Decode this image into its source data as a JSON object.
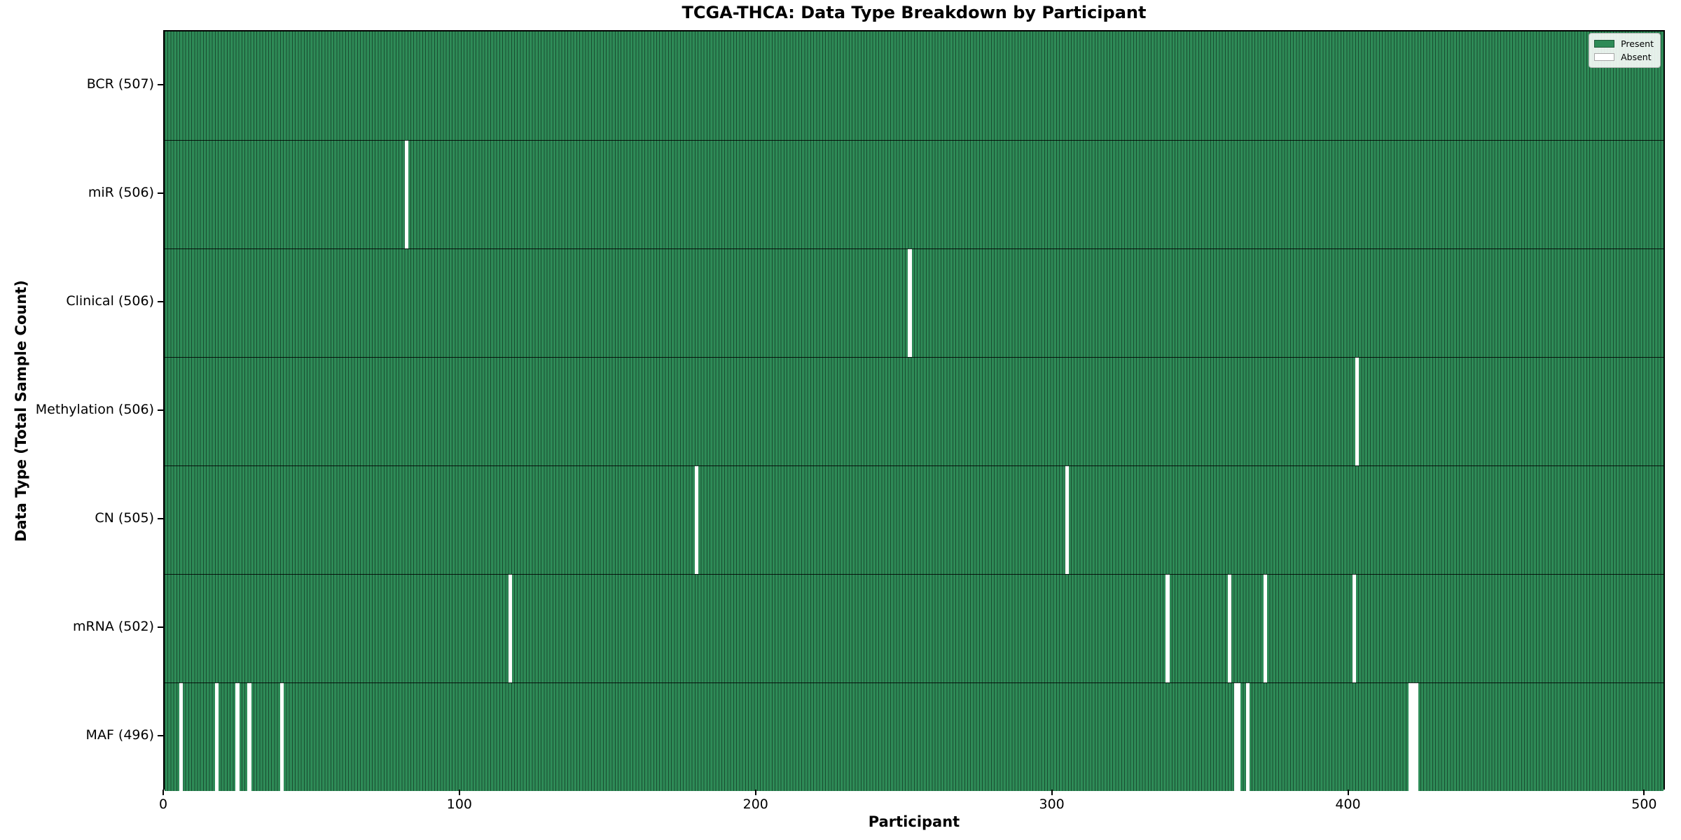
{
  "title": "TCGA-THCA: Data Type Breakdown by Participant",
  "chart_data": {
    "type": "heatmap",
    "title": "TCGA-THCA: Data Type Breakdown by Participant",
    "xlabel": "Participant",
    "ylabel": "Data Type (Total Sample Count)",
    "x_ticks": [
      0,
      100,
      200,
      300,
      400,
      500
    ],
    "x_range": [
      0,
      507
    ],
    "total_participants": 507,
    "grid": "horizontal row separators only",
    "legend_position": "upper right",
    "legend": {
      "entries": [
        {
          "label": "Present",
          "color": "#2e8b57"
        },
        {
          "label": "Absent",
          "color": "#ffffff"
        }
      ]
    },
    "colors": {
      "present": "#2e8b57",
      "absent": "#ffffff",
      "bar_edge": "rgba(0,0,0,0.45)",
      "row_separator": "rgba(0,0,0,0.85)",
      "plot_border": "#000000"
    },
    "rows": [
      {
        "name": "BCR",
        "label": "BCR (507)",
        "present_count": 507,
        "absent_participants": []
      },
      {
        "name": "miR",
        "label": "miR (506)",
        "present_count": 506,
        "absent_participants": [
          81
        ]
      },
      {
        "name": "Clinical",
        "label": "Clinical (506)",
        "present_count": 506,
        "absent_participants": [
          251
        ]
      },
      {
        "name": "Methylation",
        "label": "Methylation (506)",
        "present_count": 506,
        "absent_participants": [
          402
        ]
      },
      {
        "name": "CN",
        "label": "CN (505)",
        "present_count": 505,
        "absent_participants": [
          179,
          304
        ]
      },
      {
        "name": "mRNA",
        "label": "mRNA (502)",
        "present_count": 502,
        "absent_participants": [
          116,
          338,
          359,
          371,
          401
        ]
      },
      {
        "name": "MAF",
        "label": "MAF (496)",
        "present_count": 496,
        "absent_participants": [
          5,
          17,
          24,
          28,
          39,
          361,
          362,
          365,
          420,
          421,
          422
        ]
      }
    ]
  }
}
